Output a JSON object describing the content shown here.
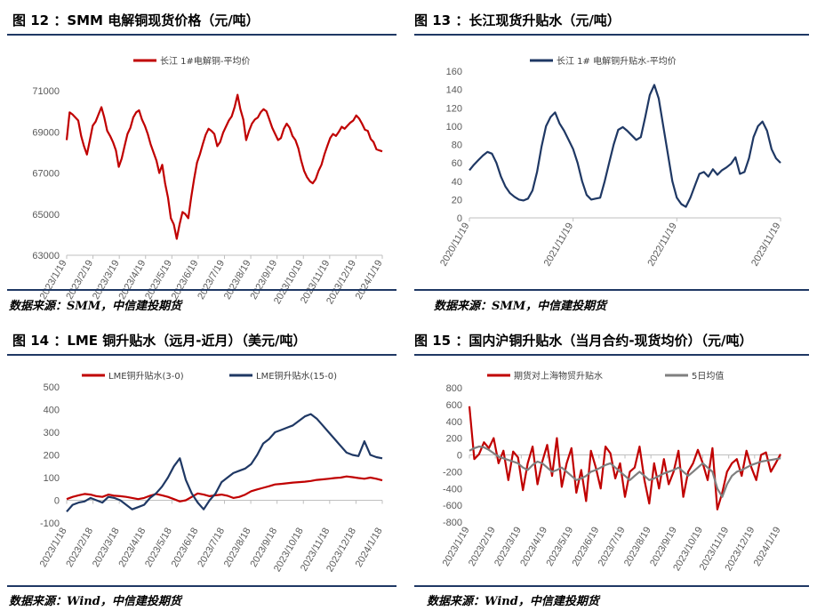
{
  "source_texts": {
    "smm": "数据来源：SMM，中信建投期货",
    "wind": "数据来源：Wind，中信建投期货"
  },
  "chart_data": [
    {
      "type": "line",
      "title": "图 12 ：SMM 电解铜现货价格（元/吨）",
      "series": [
        {
          "name": "长江 1#电解铜-平均价",
          "color": "#c00000",
          "values": [
            68600,
            69950,
            69850,
            69700,
            69550,
            68800,
            68300,
            67900,
            68600,
            69300,
            69500,
            69850,
            70200,
            69700,
            69050,
            68800,
            68500,
            68100,
            67300,
            67700,
            68300,
            68900,
            69200,
            69700,
            69950,
            70050,
            69600,
            69300,
            68900,
            68400,
            68000,
            67600,
            67000,
            67400,
            66500,
            65800,
            64800,
            64500,
            63800,
            64500,
            65100,
            65000,
            64800,
            65800,
            66700,
            67500,
            67900,
            68400,
            68850,
            69150,
            69050,
            68900,
            68300,
            68500,
            68950,
            69250,
            69550,
            69750,
            70200,
            70800,
            70100,
            69600,
            68600,
            69050,
            69400,
            69600,
            69700,
            69950,
            70100,
            70000,
            69600,
            69200,
            68900,
            68600,
            68700,
            69150,
            69400,
            69200,
            68800,
            68600,
            68200,
            67600,
            67100,
            66800,
            66600,
            66500,
            66700,
            67100,
            67400,
            67900,
            68300,
            68700,
            68900,
            68800,
            69000,
            69250,
            69150,
            69300,
            69450,
            69550,
            69800,
            69650,
            69400,
            69100,
            69050,
            68650,
            68500,
            68150,
            68100,
            68050
          ]
        }
      ],
      "x_ticks": [
        "2023/1/19",
        "2023/2/19",
        "2023/3/19",
        "2023/4/19",
        "2023/5/19",
        "2023/6/19",
        "2023/7/19",
        "2023/8/19",
        "2023/9/19",
        "2023/10/19",
        "2023/11/19",
        "2023/12/19",
        "2024/1/19"
      ],
      "y_ticks": [
        "63000",
        "65000",
        "67000",
        "69000",
        "71000"
      ],
      "ylim": [
        63000,
        71000
      ],
      "grid": false,
      "legend": "top"
    },
    {
      "type": "line",
      "title": "图 13 ：长江现货升贴水（元/吨）",
      "series": [
        {
          "name": "长江 1# 电解铜升贴水-平均价",
          "color": "#1f3864",
          "values": [
            52,
            58,
            63,
            68,
            72,
            70,
            60,
            45,
            34,
            27,
            23,
            20,
            19,
            21,
            30,
            50,
            78,
            100,
            110,
            115,
            103,
            95,
            85,
            75,
            60,
            40,
            25,
            20,
            21,
            22,
            40,
            60,
            80,
            96,
            99,
            95,
            90,
            85,
            88,
            110,
            134,
            145,
            130,
            100,
            70,
            40,
            22,
            15,
            12,
            22,
            35,
            48,
            50,
            45,
            53,
            47,
            52,
            55,
            59,
            66,
            48,
            50,
            65,
            88,
            100,
            105,
            95,
            75,
            65,
            60
          ]
        }
      ],
      "x_ticks": [
        "2020/11/19",
        "2021/11/19",
        "2022/11/19",
        "2023/11/19"
      ],
      "y_ticks": [
        "0",
        "20",
        "40",
        "60",
        "80",
        "100",
        "120",
        "140",
        "160"
      ],
      "ylim": [
        0,
        160
      ],
      "grid": false,
      "legend": "top"
    },
    {
      "type": "line",
      "title": "图 14 ：LME 铜升贴水（远月-近月）（美元/吨）",
      "series": [
        {
          "name": "LME铜升贴水(3-0)",
          "color": "#c00000",
          "values": [
            5,
            15,
            22,
            28,
            25,
            18,
            15,
            25,
            20,
            18,
            15,
            10,
            5,
            10,
            20,
            28,
            22,
            15,
            5,
            -5,
            0,
            15,
            30,
            25,
            18,
            22,
            25,
            20,
            10,
            15,
            25,
            40,
            48,
            55,
            62,
            70,
            72,
            75,
            78,
            80,
            82,
            85,
            90,
            92,
            95,
            98,
            100,
            105,
            102,
            98,
            95,
            100,
            95,
            88
          ]
        },
        {
          "name": "LME铜升贴水(15-0)",
          "color": "#1f3864",
          "values": [
            -50,
            -20,
            -10,
            -5,
            10,
            0,
            -10,
            15,
            10,
            0,
            -20,
            -40,
            -30,
            -20,
            10,
            30,
            60,
            100,
            150,
            185,
            90,
            30,
            -10,
            -40,
            0,
            30,
            80,
            100,
            120,
            130,
            140,
            160,
            200,
            250,
            270,
            300,
            310,
            320,
            330,
            350,
            370,
            380,
            360,
            330,
            300,
            270,
            240,
            210,
            200,
            195,
            260,
            200,
            190,
            185
          ]
        }
      ],
      "x_ticks": [
        "2023/1/18",
        "2023/2/18",
        "2023/3/18",
        "2023/4/18",
        "2023/5/18",
        "2023/6/18",
        "2023/7/18",
        "2023/8/18",
        "2023/9/18",
        "2023/10/18",
        "2023/11/18",
        "2023/12/18",
        "2024/1/18"
      ],
      "y_ticks": [
        "-100",
        "0",
        "100",
        "200",
        "300",
        "400",
        "500"
      ],
      "ylim": [
        -100,
        500
      ],
      "grid": false,
      "legend": "top"
    },
    {
      "type": "line",
      "title": "图 15 ：国内沪铜升贴水（当月合约-现货均价）（元/吨）",
      "series": [
        {
          "name": "期货对上海物贸升贴水",
          "color": "#c00000",
          "values": [
            580,
            -50,
            10,
            150,
            80,
            200,
            -100,
            50,
            -300,
            40,
            -30,
            -420,
            -100,
            100,
            -350,
            -80,
            120,
            -250,
            200,
            -380,
            -100,
            80,
            -450,
            -180,
            -550,
            50,
            -150,
            -400,
            100,
            20,
            -280,
            -100,
            -500,
            -200,
            -150,
            100,
            -300,
            -580,
            -100,
            -400,
            -50,
            -350,
            -200,
            50,
            -500,
            -200,
            -100,
            60,
            -100,
            -300,
            80,
            -650,
            -450,
            -200,
            -100,
            -50,
            -250,
            50,
            -150,
            -300,
            0,
            30,
            -200,
            -100,
            10
          ]
        },
        {
          "name": "5日均值",
          "color": "#7f7f7f",
          "values": [
            50,
            80,
            100,
            90,
            60,
            20,
            -20,
            -40,
            -60,
            -80,
            -100,
            -150,
            -180,
            -120,
            -80,
            -100,
            -150,
            -200,
            -180,
            -150,
            -200,
            -250,
            -300,
            -280,
            -250,
            -200,
            -180,
            -150,
            -120,
            -100,
            -150,
            -200,
            -250,
            -300,
            -250,
            -200,
            -250,
            -300,
            -280,
            -250,
            -220,
            -200,
            -180,
            -150,
            -200,
            -250,
            -200,
            -150,
            -100,
            -150,
            -200,
            -400,
            -500,
            -350,
            -250,
            -200,
            -180,
            -150,
            -120,
            -100,
            -80,
            -70,
            -60,
            -50,
            -40
          ]
        }
      ],
      "x_ticks": [
        "2023/1/19",
        "2023/2/19",
        "2023/3/19",
        "2023/4/19",
        "2023/5/19",
        "2023/6/19",
        "2023/7/19",
        "2023/8/19",
        "2023/9/19",
        "2023/10/19",
        "2023/11/19",
        "2023/12/19",
        "2024/1/19"
      ],
      "y_ticks": [
        "-800",
        "-600",
        "-400",
        "-200",
        "0",
        "200",
        "400",
        "600",
        "800"
      ],
      "ylim": [
        -800,
        800
      ],
      "grid": false,
      "legend": "top"
    }
  ]
}
